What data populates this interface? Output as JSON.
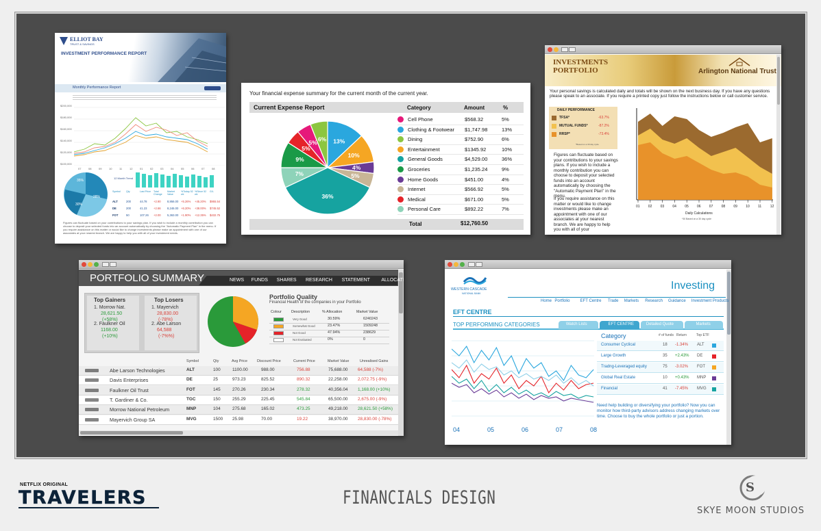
{
  "footer": {
    "netflix": "NETFLIX ORIGINAL",
    "show": "TRAVELERS",
    "center": "FINANCIALS DESIGN",
    "studio": "SKYE MOON STUDIOS",
    "logo_glyph": "S"
  },
  "p1": {
    "brand": "ELLIOT BAY",
    "brand_sub": "TRUST & SAVINGS",
    "title": "INVESTMENT PERFORMANCE REPORT",
    "subtitle": "Monthly Performance Report",
    "chart_y": [
      "$200,000",
      "$180,000",
      "$160,000",
      "$140,000",
      "$120,000",
      "$100,000"
    ],
    "chart_x": [
      "07",
      "08",
      "09",
      "10",
      "11",
      "12",
      "01",
      "02",
      "03",
      "04",
      "05",
      "06",
      "07",
      "08"
    ],
    "pie_labels": [
      "35%",
      "28%",
      "30%"
    ],
    "trend_label": "12 Month Trend",
    "cols": [
      "Symbol",
      "Qty",
      "Last Price",
      "Total Change",
      "Market Value",
      "%Today 52 wk",
      "%Since 52 wk",
      "G/L"
    ],
    "rows": [
      [
        "ALT",
        "200",
        "44.78",
        "+2.90",
        "8,956.00",
        "+5.26%",
        "+45.20%",
        "$955.54"
      ],
      [
        "DE",
        "200",
        "41.23",
        "+2.66",
        "8,246.00",
        "+6.20%",
        "+38.00%",
        "$745.52"
      ],
      [
        "FOT",
        "50",
        "107.26",
        "+2.00",
        "5,363.00",
        "+1.90%",
        "+12.35%",
        "$432.75"
      ]
    ],
    "body": "Figures can fluctuate based on your contributions to your savings plan. If you wish to include a monthly contribution you can choose to deposit your selected funds into an account automatically by choosing the \"Automatic Payment Plan\" in the menu. If you require assistance on this matter or would like to change investments please make an appointment with one of our associates at your nearest branch. We are happy to help you with all of your investment needs."
  },
  "p2": {
    "intro": "Your financial expense summary for the current month of the current year.",
    "title": "Current Expense Report",
    "h_cat": "Category",
    "h_amt": "Amount",
    "h_pct": "%",
    "rows": [
      {
        "c": "#e6197a",
        "n": "Cell Phone",
        "a": "$568.32",
        "p": "5%"
      },
      {
        "c": "#2aa7de",
        "n": "Clothing  & Footwear",
        "a": "$1,747.98",
        "p": "13%"
      },
      {
        "c": "#8cc640",
        "n": "Dining",
        "a": "$752.90",
        "p": "6%"
      },
      {
        "c": "#f5a623",
        "n": "Entertainment",
        "a": "$1345.92",
        "p": "10%"
      },
      {
        "c": "#16a3a0",
        "n": "General Goods",
        "a": "$4,529.00",
        "p": "36%"
      },
      {
        "c": "#1a9a47",
        "n": "Groceries",
        "a": "$1,235.24",
        "p": "9%"
      },
      {
        "c": "#6a3b96",
        "n": "Home Goods",
        "a": "$451.00",
        "p": "4%"
      },
      {
        "c": "#c8b596",
        "n": "Internet",
        "a": "$566.92",
        "p": "5%"
      },
      {
        "c": "#e52329",
        "n": "Medical",
        "a": "$671.00",
        "p": "5%"
      },
      {
        "c": "#8ed3b9",
        "n": "Personal Care",
        "a": "$892.22",
        "p": "7%"
      }
    ],
    "total_label": "Total",
    "total": "$12,760.50"
  },
  "p3": {
    "title1": "INVESTMENTS",
    "title2": "PORTFOLIO",
    "bank": "Arlington National Trust",
    "intro": "Your personal savings is calculated daily and totals will be shown on the next business day. If you have any questions please speak to an associate. If you require a printed copy just follow the instructions below or call customer service.",
    "perf_title": "DAILY PERFORMANCE",
    "perf": [
      {
        "n": "TFSA*",
        "v": "-63.7%",
        "c": "#9b6a2f"
      },
      {
        "n": "MUTUAL FUNDS*",
        "v": "-87.2%",
        "c": "#f2c14e"
      },
      {
        "n": "RRSP*",
        "v": "-73.4%",
        "c": "#e8922a"
      }
    ],
    "perf_note": "*Based on a 30 day cycle",
    "body": "Figures can fluctuate based on your contributions to your savings plans. If you wish to include a monthly contribution you can choose to deposit your selected funds into an account automatically by choosing the \"Automatic Payment Plan\" in the menu.",
    "body2": "If you require assistance on this matter or would like to change investments please make an appointment with one of our associates at your nearest branch. We are happy to help you with all of your",
    "x": [
      "01",
      "02",
      "03",
      "04",
      "05",
      "06",
      "07",
      "08",
      "09",
      "10",
      "11",
      "12"
    ],
    "xlabel": "Daily Calculations",
    "xnote": "*30 Based on a 30 day cycle"
  },
  "p4": {
    "title": "PORTFOLIO SUMMARY",
    "nav": [
      "NEWS",
      "FUNDS",
      "SHARES",
      "RESEARCH",
      "STATEMENT",
      "ALLOCATION"
    ],
    "gainers_h": "Top Gainers",
    "gainers": [
      [
        "1. Morrow Nat.",
        "28,621.50",
        "(+58%)"
      ],
      [
        "2. Faulkner Oil",
        "1168.00",
        "(+10%)"
      ]
    ],
    "losers_h": "Top Losers",
    "losers": [
      [
        "1. Mayervich",
        "28,830.00",
        "(-78%)"
      ],
      [
        "2. Abe Larson",
        "64,588",
        "(-7%%)"
      ]
    ],
    "quality": "Portfolio Quality",
    "quality_sub": "Financial Health of the companies in your Portfolio",
    "qcols": [
      "Colour",
      "Description",
      "% Allocation",
      "Market Value"
    ],
    "qrows": [
      [
        "#2a9a3a",
        "Very Good",
        "30.59%",
        "6240243"
      ],
      [
        "#f5a623",
        "Somewhat Good",
        "23.47%",
        "1509248"
      ],
      [
        "#e52329",
        "Not Good",
        "47.94%",
        "238629"
      ],
      [
        "#ffffff",
        "Not Evaluated",
        "0%",
        "0"
      ]
    ],
    "cols": [
      "Symbol",
      "Qty",
      "Avg Price",
      "Discount Price",
      "Current Price",
      "Market Value",
      "Unrealised Gains"
    ],
    "rows": [
      [
        "Abe Larson Technologies",
        "ALT",
        "100",
        "1100.00",
        "988.00",
        "756.88",
        "75,688.00",
        "64,588 (-7%)"
      ],
      [
        "Davis Enterprises",
        "DE",
        "25",
        "973.23",
        "825.52",
        "890.32",
        "22,258.00",
        "2,072.75 (-9%)"
      ],
      [
        "Faulkner Oil Trust",
        "FOT",
        "145",
        "270.26",
        "230.34",
        "278.32",
        "40,356.04",
        "1,168.00 (+10%)"
      ],
      [
        "T. Gardiner & Co.",
        "TGC",
        "150",
        "255.29",
        "225.45",
        "545.84",
        "65,500.00",
        "2,675.00 (-9%)"
      ],
      [
        "Morrow National Petroleum",
        "MNP",
        "104",
        "275.68",
        "165.02",
        "473.25",
        "49,218.00",
        "28,621.50 (+58%)"
      ],
      [
        "Mayervich Group SA",
        "MVG",
        "1500",
        "25.98",
        "70.00",
        "19.22",
        "38,970.00",
        "28,830.00 (-78%)"
      ]
    ]
  },
  "p5": {
    "brand": "WESTERN CASCADE",
    "brand_sub": "NATIONAL BANK",
    "title": "Investing",
    "nav": [
      "Home",
      "Portfolio",
      "EFT Centre",
      "Trade",
      "Markets",
      "Research",
      "Guidance",
      "Investment Products"
    ],
    "eft": "EFT CENTRE",
    "top": "TOP PERFORMING CATEGORIES",
    "tabs": [
      "Watch Lists",
      "EFT CENTRE",
      "Detailed Quote",
      "Markets"
    ],
    "cols": [
      "Category",
      "# of funds",
      "Return",
      "Top ETF"
    ],
    "rows": [
      {
        "n": "Consumer Cyclical",
        "f": "18",
        "r": "-1.34%",
        "e": "ALT",
        "c": "#2aa7de"
      },
      {
        "n": "Large Growth",
        "f": "35",
        "r": "+2.43%",
        "e": "DE",
        "c": "#e52329"
      },
      {
        "n": "Tradng-Leveraged equity",
        "f": "75",
        "r": "-3.02%",
        "e": "FOT",
        "c": "#f5a623"
      },
      {
        "n": "Global Real Estate",
        "f": "10",
        "r": "+0.43%",
        "e": "MNP",
        "c": "#6a3b96"
      },
      {
        "n": "Financial",
        "f": "41",
        "r": "-7.45%",
        "e": "MVG",
        "c": "#16a3a0"
      }
    ],
    "x": [
      "04",
      "05",
      "06",
      "07",
      "08"
    ],
    "body": "Need help building or diversifying your portfolio? Now you can monitor how third-party advisors address changing markets over time. Choose to buy the whole portfolio or just a portion."
  }
}
